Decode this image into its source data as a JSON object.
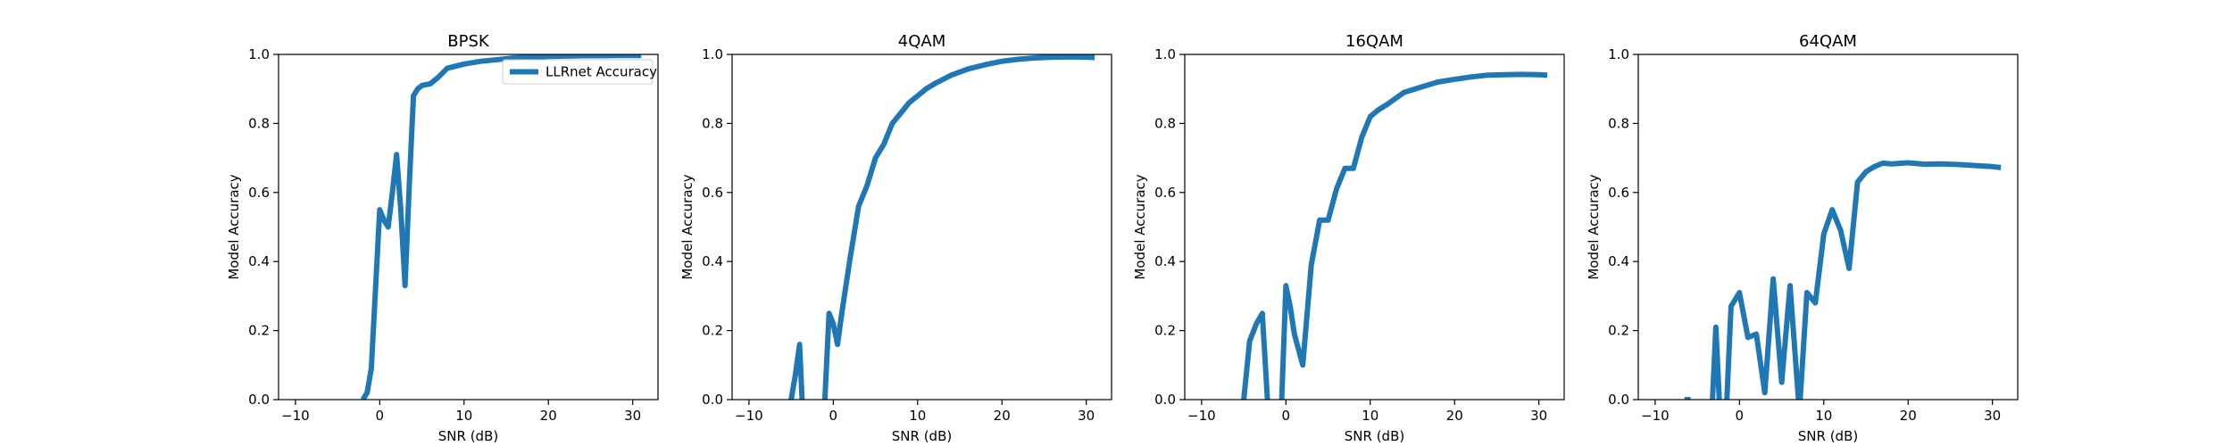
{
  "figure": {
    "background": "#ffffff"
  },
  "chart_data": [
    {
      "type": "line",
      "title": "BPSK",
      "xlabel": "SNR (dB)",
      "ylabel": "Model Accuracy",
      "xlim": [
        -12,
        33
      ],
      "ylim": [
        0,
        1.0
      ],
      "xticks": [
        -10,
        0,
        10,
        20,
        30
      ],
      "xtick_labels": [
        "−10",
        "0",
        "10",
        "20",
        "30"
      ],
      "yticks": [
        0,
        0.2,
        0.4,
        0.6,
        0.8,
        1.0
      ],
      "ytick_labels": [
        "0.0",
        "0.2",
        "0.4",
        "0.6",
        "0.8",
        "1.0"
      ],
      "legend": {
        "placement": "top-right",
        "entries": [
          "LLRnet Accuracy"
        ]
      },
      "series": [
        {
          "name": "LLRnet Accuracy",
          "color": "#1f77b4",
          "x": [
            -2,
            -1.5,
            -1,
            -0.5,
            0,
            0.5,
            1,
            1.5,
            2,
            2.5,
            3,
            3.5,
            4,
            4.5,
            5,
            6,
            7,
            8,
            10,
            12,
            14,
            16,
            18,
            20,
            22,
            24,
            26,
            28,
            30,
            31
          ],
          "y": [
            0.0,
            0.02,
            0.09,
            0.32,
            0.55,
            0.52,
            0.5,
            0.6,
            0.71,
            0.55,
            0.33,
            0.62,
            0.88,
            0.9,
            0.91,
            0.915,
            0.935,
            0.96,
            0.972,
            0.98,
            0.985,
            0.99,
            0.992,
            0.994,
            0.995,
            0.996,
            0.996,
            0.997,
            0.997,
            0.997
          ]
        }
      ]
    },
    {
      "type": "line",
      "title": "4QAM",
      "xlabel": "SNR (dB)",
      "ylabel": "Model Accuracy",
      "xlim": [
        -12,
        33
      ],
      "ylim": [
        0,
        1.0
      ],
      "xticks": [
        -10,
        0,
        10,
        20,
        30
      ],
      "xtick_labels": [
        "−10",
        "0",
        "10",
        "20",
        "30"
      ],
      "yticks": [
        0,
        0.2,
        0.4,
        0.6,
        0.8,
        1.0
      ],
      "ytick_labels": [
        "0.0",
        "0.2",
        "0.4",
        "0.6",
        "0.8",
        "1.0"
      ],
      "series": [
        {
          "name": "",
          "color": "#1f77b4",
          "segments": [
            {
              "x": [
                -5,
                -4.5,
                -4,
                -3.7
              ],
              "y": [
                0.0,
                0.07,
                0.16,
                0.0
              ]
            },
            {
              "x": [
                -1,
                -0.5,
                0,
                0.5,
                1,
                2,
                3,
                4,
                5,
                6,
                7,
                8,
                9,
                10,
                11,
                12,
                14,
                16,
                18,
                20,
                22,
                24,
                26,
                28,
                30,
                31
              ],
              "y": [
                0.0,
                0.25,
                0.22,
                0.16,
                0.25,
                0.41,
                0.56,
                0.62,
                0.7,
                0.74,
                0.8,
                0.83,
                0.86,
                0.88,
                0.9,
                0.915,
                0.94,
                0.958,
                0.97,
                0.98,
                0.986,
                0.99,
                0.992,
                0.993,
                0.992,
                0.991
              ]
            }
          ]
        }
      ]
    },
    {
      "type": "line",
      "title": "16QAM",
      "xlabel": "SNR (dB)",
      "ylabel": "Model Accuracy",
      "xlim": [
        -12,
        33
      ],
      "ylim": [
        0,
        1.0
      ],
      "xticks": [
        -10,
        0,
        10,
        20,
        30
      ],
      "xtick_labels": [
        "−10",
        "0",
        "10",
        "20",
        "30"
      ],
      "yticks": [
        0,
        0.2,
        0.4,
        0.6,
        0.8,
        1.0
      ],
      "ytick_labels": [
        "0.0",
        "0.2",
        "0.4",
        "0.6",
        "0.8",
        "1.0"
      ],
      "series": [
        {
          "name": "",
          "color": "#1f77b4",
          "segments": [
            {
              "x": [
                -5,
                -4.3,
                -3.5,
                -2.8,
                -2.2
              ],
              "y": [
                0.0,
                0.17,
                0.22,
                0.25,
                0.0
              ]
            },
            {
              "x": [
                -0.5,
                0,
                0.5,
                1,
                2,
                3,
                4,
                5,
                6,
                7,
                8,
                9,
                10,
                11,
                12,
                14,
                16,
                18,
                20,
                22,
                24,
                26,
                28,
                30,
                31
              ],
              "y": [
                0.0,
                0.33,
                0.27,
                0.19,
                0.1,
                0.39,
                0.52,
                0.52,
                0.61,
                0.67,
                0.67,
                0.76,
                0.82,
                0.84,
                0.855,
                0.89,
                0.905,
                0.92,
                0.928,
                0.935,
                0.94,
                0.941,
                0.942,
                0.941,
                0.94
              ]
            }
          ]
        }
      ]
    },
    {
      "type": "line",
      "title": "64QAM",
      "xlabel": "SNR (dB)",
      "ylabel": "Model Accuracy",
      "xlim": [
        -12,
        33
      ],
      "ylim": [
        0,
        1.0
      ],
      "xticks": [
        -10,
        0,
        10,
        20,
        30
      ],
      "xtick_labels": [
        "−10",
        "0",
        "10",
        "20",
        "30"
      ],
      "yticks": [
        0,
        0.2,
        0.4,
        0.6,
        0.8,
        1.0
      ],
      "ytick_labels": [
        "0.0",
        "0.2",
        "0.4",
        "0.6",
        "0.8",
        "1.0"
      ],
      "series": [
        {
          "name": "",
          "color": "#1f77b4",
          "segments": [
            {
              "x": [
                -6.5,
                -5.8
              ],
              "y": [
                0.0,
                0.0
              ]
            },
            {
              "x": [
                -3.2,
                -2.8,
                -2.4
              ],
              "y": [
                0.0,
                0.21,
                0.0
              ]
            },
            {
              "x": [
                -1.5,
                -1,
                0,
                1,
                2,
                3,
                4,
                5,
                6,
                7
              ],
              "y": [
                0.0,
                0.27,
                0.31,
                0.18,
                0.19,
                0.02,
                0.35,
                0.05,
                0.33,
                0.0
              ]
            },
            {
              "x": [
                7.2,
                8,
                9,
                10,
                11,
                12,
                13,
                14,
                15,
                16,
                17,
                18,
                20,
                22,
                24,
                26,
                28,
                30,
                31
              ],
              "y": [
                0.0,
                0.31,
                0.28,
                0.48,
                0.55,
                0.49,
                0.38,
                0.63,
                0.66,
                0.675,
                0.685,
                0.683,
                0.686,
                0.682,
                0.683,
                0.681,
                0.678,
                0.675,
                0.672
              ]
            }
          ]
        }
      ]
    }
  ]
}
